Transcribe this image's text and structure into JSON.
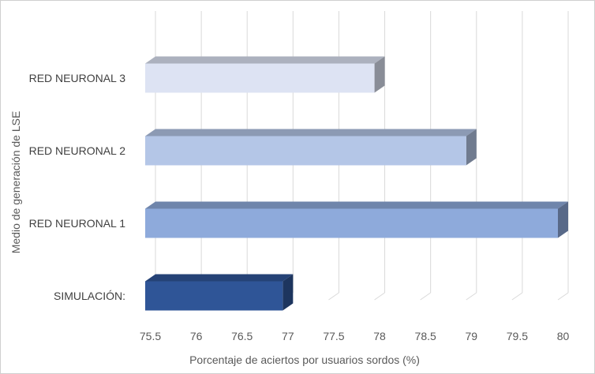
{
  "chart_data": {
    "type": "bar",
    "orientation": "horizontal",
    "style": "3d",
    "categories": [
      "RED NEURONAL 3",
      "RED NEURONAL 2",
      "RED NEURONAL 1",
      "SIMULACIÓN:"
    ],
    "values": [
      78.0,
      79.0,
      80.0,
      77.0
    ],
    "colors": [
      "#dde3f3",
      "#b4c6e7",
      "#8eaadb",
      "#2f5597"
    ],
    "xlabel": "Porcentaje de aciertos por usuarios sordos (%)",
    "ylabel": "Medio de generación de LSE",
    "xlim": [
      75.5,
      80
    ],
    "xticks": [
      "75.5",
      "76",
      "76.5",
      "77",
      "77.5",
      "78",
      "78.5",
      "79",
      "79.5",
      "80"
    ],
    "grid": true,
    "legend": "none"
  }
}
